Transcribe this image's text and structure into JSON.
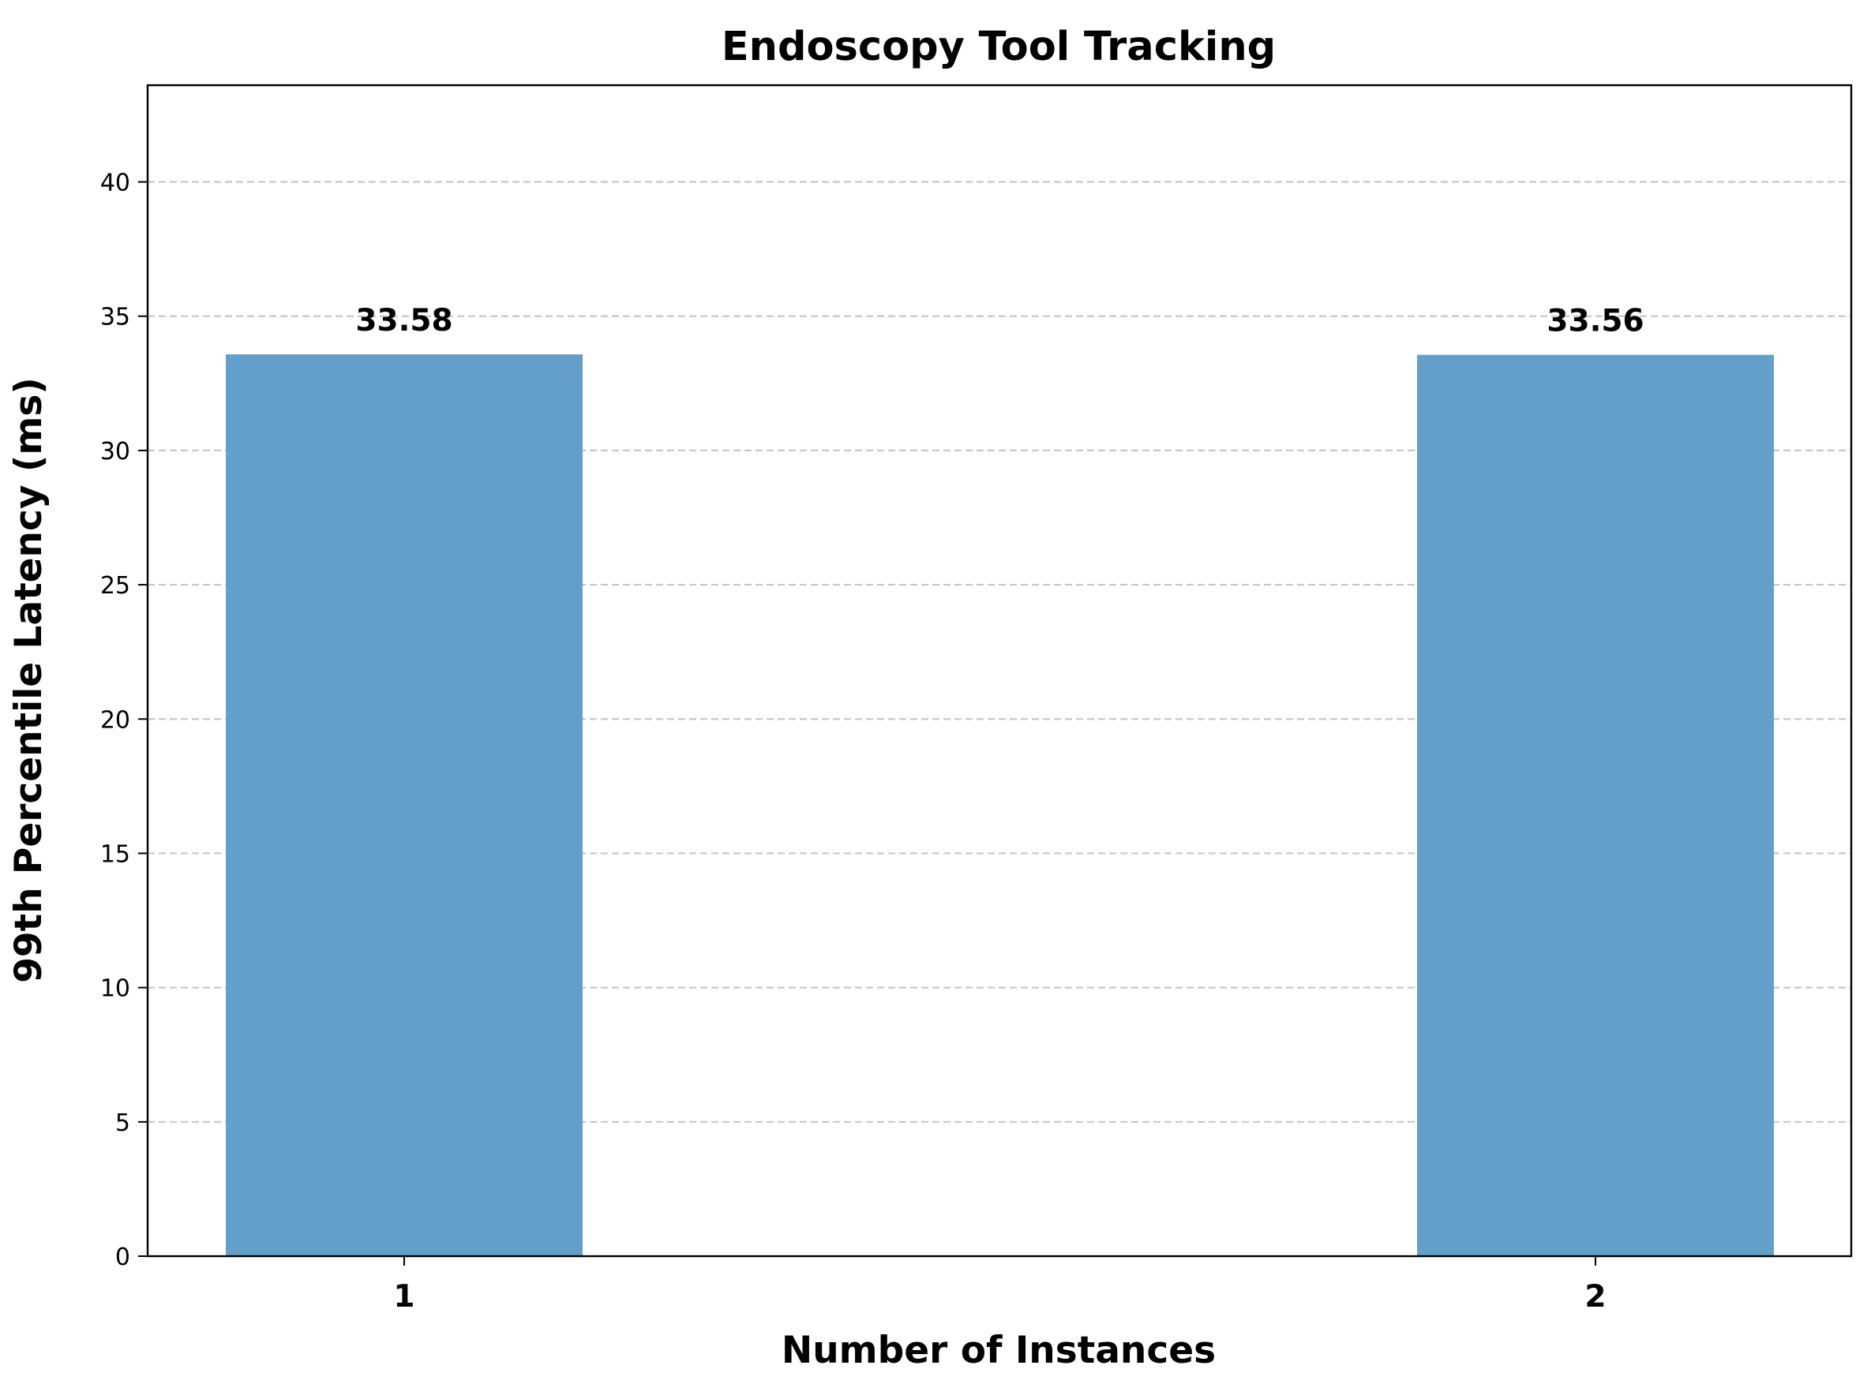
{
  "chart_data": {
    "type": "bar",
    "title": "Endoscopy Tool Tracking",
    "xlabel": "Number of Instances",
    "ylabel": "99th Percentile Latency (ms)",
    "categories": [
      "1",
      "2"
    ],
    "values": [
      33.58,
      33.56
    ],
    "value_labels": [
      "33.58",
      "33.56"
    ],
    "ylim": [
      0,
      43.6
    ],
    "yticks": [
      0,
      5,
      10,
      15,
      20,
      25,
      30,
      35,
      40
    ],
    "grid": "y, dashed",
    "bar_color": "#639fca"
  }
}
